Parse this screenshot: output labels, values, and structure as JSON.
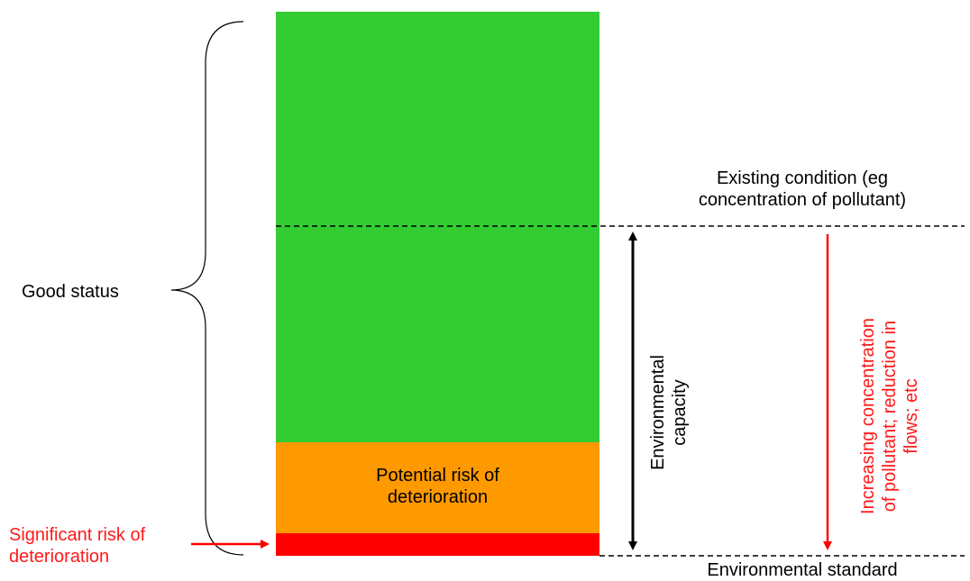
{
  "colors": {
    "good": "#33cc33",
    "potential": "#ff9900",
    "significant": "#ff0000",
    "dashed": "#000000",
    "red_text": "#ff1a1a"
  },
  "labels": {
    "good_status": "Good status",
    "potential_risk_line1": "Potential risk of",
    "potential_risk_line2": "deterioration",
    "significant_risk_line1": "Significant risk of",
    "significant_risk_line2": "deterioration",
    "existing_condition_line1": "Existing condition (eg",
    "existing_condition_line2": "concentration of pollutant)",
    "environmental_standard": "Environmental standard",
    "environmental_capacity_line1": "Environmental",
    "environmental_capacity_line2": "capacity",
    "increasing_line1": "Increasing concentration",
    "increasing_line2": "of pollutant; reduction in",
    "increasing_line3": "flows; etc"
  }
}
